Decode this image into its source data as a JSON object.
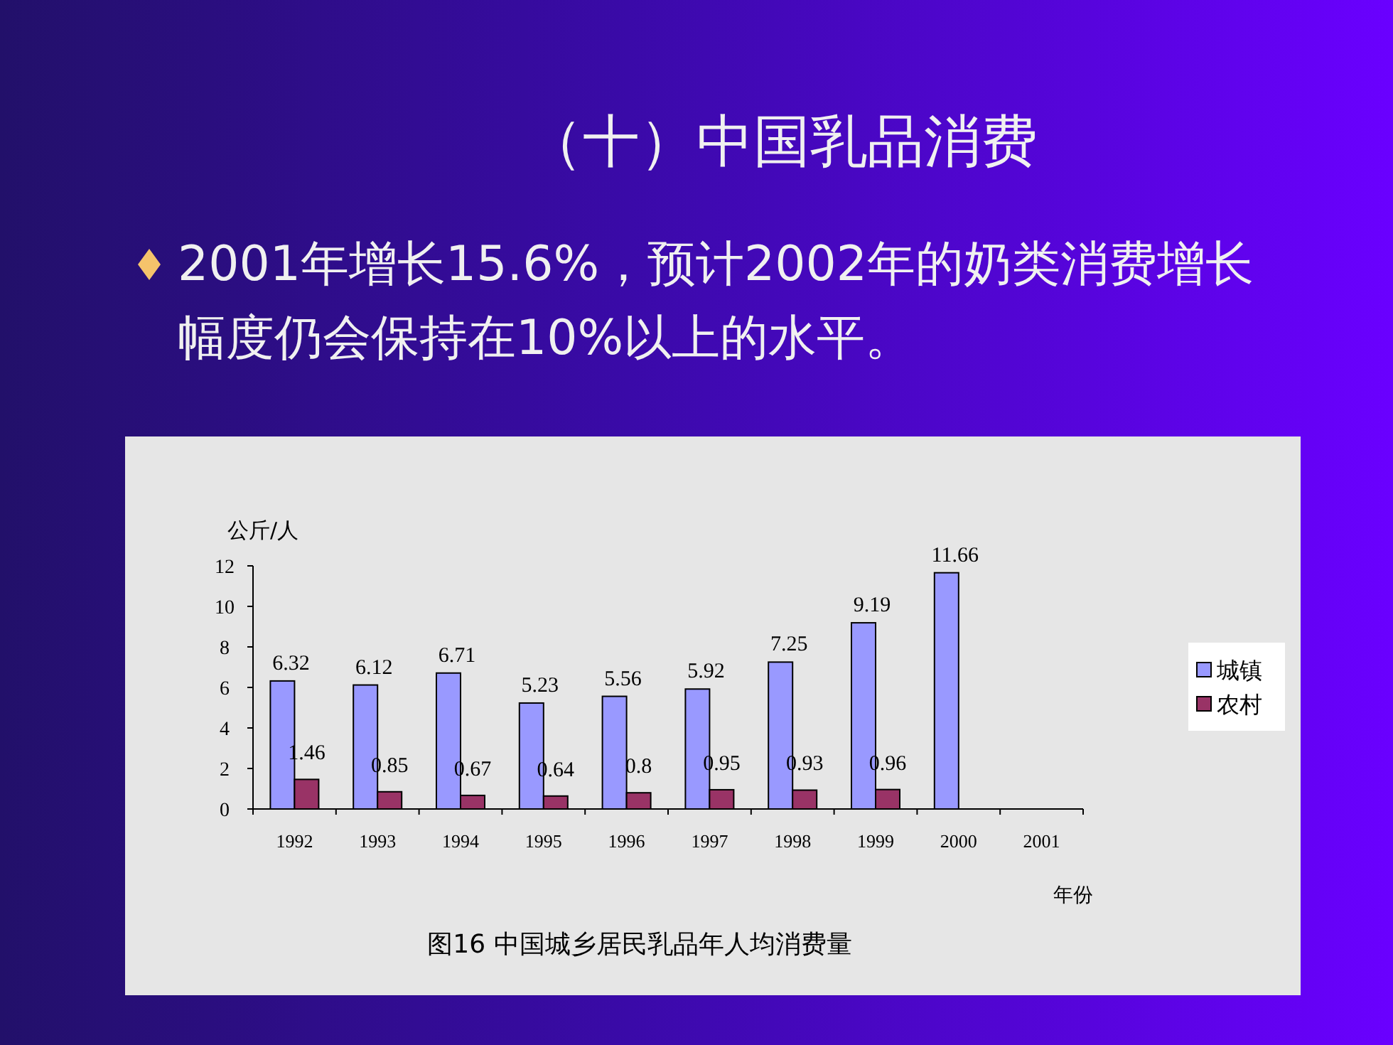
{
  "chart_data": {
    "type": "bar",
    "title": "（十）中国乳品消费",
    "subtitle": "2001年增长15.6%，预计2002年的奶类消费增长幅度仍会保持在10%以上的水平。",
    "ylabel": "公斤/人",
    "xlabel": "年份",
    "annotations": [
      "图16 中国城乡居民乳品年人均消费量"
    ],
    "categories": [
      "1992",
      "1993",
      "1994",
      "1995",
      "1996",
      "1997",
      "1998",
      "1999",
      "2000",
      "2001"
    ],
    "series": [
      {
        "name": "城镇",
        "color": "#9999ff",
        "values": [
          6.32,
          6.12,
          6.71,
          5.23,
          5.56,
          5.92,
          7.25,
          9.19,
          11.66,
          null
        ]
      },
      {
        "name": "农村",
        "color": "#993366",
        "values": [
          1.46,
          0.85,
          0.67,
          0.64,
          0.8,
          0.95,
          0.93,
          0.96,
          null,
          null
        ]
      }
    ],
    "ylim": [
      0,
      12
    ],
    "yticks": [
      0,
      2,
      4,
      6,
      8,
      10,
      12
    ],
    "data_labels": true,
    "legend": "right",
    "grid": false
  }
}
